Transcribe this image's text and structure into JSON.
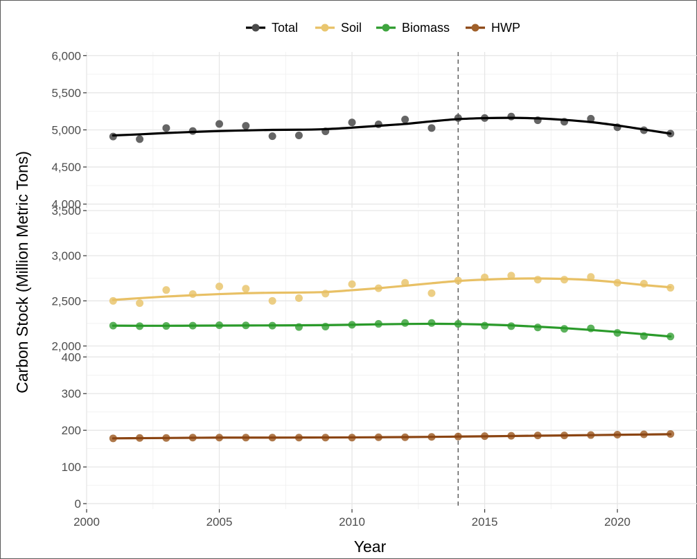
{
  "chart_data": {
    "type": "scatter",
    "title": "",
    "xlabel": "Year",
    "ylabel": "Carbon Stock (Million Metric Tons)",
    "grid": true,
    "legend_position": "top",
    "reference_line": {
      "x": 2014,
      "style": "dashed",
      "color": "#555555"
    },
    "xlim": [
      2000,
      2023
    ],
    "xticks": [
      2000,
      2005,
      2010,
      2015,
      2020
    ],
    "xtick_labels": [
      "2000",
      "2005",
      "2010",
      "2015",
      "2020"
    ],
    "panels": [
      {
        "ylim": [
          3950,
          6050
        ],
        "yticks": [
          4000,
          4500,
          5000,
          5500,
          6000
        ],
        "ytick_labels": [
          "4,000",
          "4,500",
          "5,000",
          "5,500",
          "6,000"
        ],
        "series": [
          "Total"
        ]
      },
      {
        "ylim": [
          1950,
          3500
        ],
        "yticks": [
          2000,
          2500,
          3000,
          3500
        ],
        "ytick_labels": [
          "2,000",
          "2,500",
          "3,000",
          "3,500"
        ],
        "series": [
          "Soil",
          "Biomass"
        ]
      },
      {
        "ylim": [
          -15,
          410
        ],
        "yticks": [
          0,
          100,
          200,
          300,
          400
        ],
        "ytick_labels": [
          "0",
          "100",
          "200",
          "300",
          "400"
        ],
        "series": [
          "HWP"
        ]
      }
    ],
    "x": [
      2001,
      2002,
      2003,
      2004,
      2005,
      2006,
      2007,
      2008,
      2009,
      2010,
      2011,
      2012,
      2013,
      2014,
      2015,
      2016,
      2017,
      2018,
      2019,
      2020,
      2021,
      2022
    ],
    "series": [
      {
        "name": "Total",
        "color": "#000000",
        "point_color": "#4a4a4a",
        "values": [
          4910,
          4875,
          5025,
          4985,
          5080,
          5055,
          4915,
          4925,
          4980,
          5100,
          5075,
          5140,
          5025,
          5160,
          5160,
          5180,
          5130,
          5110,
          5150,
          5035,
          4995,
          4950
        ],
        "trend": [
          4925,
          4940,
          4958,
          4972,
          4985,
          4993,
          5000,
          5002,
          5010,
          5030,
          5055,
          5080,
          5115,
          5145,
          5158,
          5162,
          5155,
          5135,
          5105,
          5060,
          5005,
          4950
        ]
      },
      {
        "name": "Soil",
        "color": "#e8c065",
        "point_color": "#e9c66f",
        "values": [
          2500,
          2475,
          2620,
          2575,
          2660,
          2635,
          2500,
          2530,
          2580,
          2685,
          2640,
          2700,
          2585,
          2725,
          2760,
          2780,
          2735,
          2735,
          2765,
          2700,
          2690,
          2645
        ],
        "trend": [
          2510,
          2530,
          2548,
          2562,
          2575,
          2585,
          2590,
          2592,
          2598,
          2618,
          2640,
          2667,
          2695,
          2720,
          2735,
          2745,
          2748,
          2743,
          2730,
          2705,
          2675,
          2650
        ]
      },
      {
        "name": "Biomass",
        "color": "#2a9a2a",
        "point_color": "#3fa53f",
        "values": [
          2225,
          2220,
          2222,
          2225,
          2230,
          2228,
          2225,
          2210,
          2215,
          2235,
          2245,
          2255,
          2255,
          2245,
          2225,
          2220,
          2205,
          2190,
          2195,
          2145,
          2110,
          2105
        ],
        "trend": [
          2225,
          2224,
          2224,
          2225,
          2226,
          2227,
          2228,
          2229,
          2231,
          2235,
          2240,
          2244,
          2246,
          2244,
          2238,
          2228,
          2214,
          2198,
          2178,
          2155,
          2130,
          2105
        ]
      },
      {
        "name": "HWP",
        "color": "#8b4513",
        "point_color": "#a0602a",
        "values": [
          178,
          179,
          179,
          180,
          180,
          180,
          180,
          180,
          180,
          180,
          181,
          181,
          182,
          183,
          184,
          185,
          186,
          186,
          187,
          188,
          189,
          190
        ],
        "trend": [
          178,
          178.5,
          179,
          179.5,
          180,
          180,
          180,
          180.2,
          180.4,
          180.6,
          181,
          181.4,
          182,
          182.8,
          183.6,
          184.4,
          185.2,
          186,
          186.8,
          187.6,
          188.4,
          189.2
        ]
      }
    ]
  }
}
